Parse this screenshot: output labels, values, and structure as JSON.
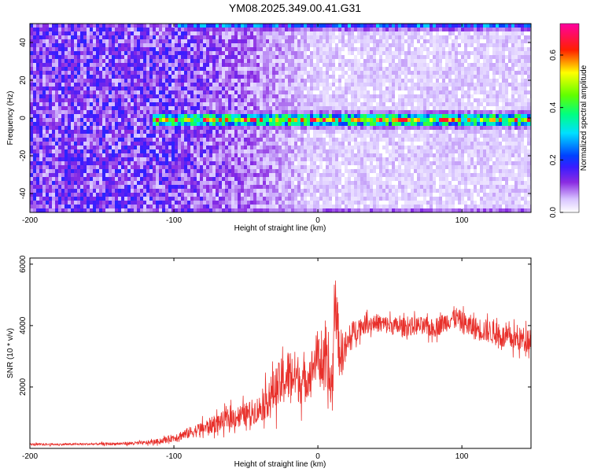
{
  "title": "YM08.2025.349.00.41.G31",
  "chart_data": [
    {
      "type": "heatmap",
      "title": "YM08.2025.349.00.41.G31",
      "xlabel": "Height of straight line (km)",
      "ylabel": "Frequency (Hz)",
      "xlim": [
        -200,
        148
      ],
      "ylim": [
        -50,
        50
      ],
      "x_ticks": [
        "-200",
        "-100",
        "0",
        "100"
      ],
      "y_ticks": [
        "40",
        "20",
        "0",
        "-20",
        "-40"
      ],
      "colorbar": {
        "label": "Normalized spectral amplitude",
        "range": [
          0,
          0.72
        ],
        "ticks": [
          "0.0",
          "0.2",
          "0.4",
          "0.6"
        ],
        "colormap": "white-violet-blue-cyan-green-yellow-red-magenta"
      },
      "features": [
        {
          "description": "signal line",
          "frequency_hz": 0,
          "x_start_km": -115,
          "x_end_km": 148,
          "peak_amplitude": 0.68
        },
        {
          "description": "band edge",
          "frequency_hz": -50,
          "x_start_km": -100,
          "x_end_km": 148,
          "peak_amplitude": 0.3
        },
        {
          "description": "band edge",
          "frequency_hz": 50,
          "x_start_km": -100,
          "x_end_km": 148,
          "peak_amplitude": 0.3
        }
      ],
      "background_level": {
        "x_below_minus100_km": 0.12,
        "x_above_0_km": 0.04
      }
    },
    {
      "type": "line",
      "xlabel": "Height of straight line (km)",
      "ylabel": "SNR (10 * v/v)",
      "xlim": [
        -200,
        148
      ],
      "ylim": [
        0,
        6200
      ],
      "x_ticks": [
        "-200",
        "-100",
        "0",
        "100"
      ],
      "y_ticks": [
        "2000",
        "4000",
        "6000"
      ],
      "color": "#e8302b",
      "series": [
        {
          "x": [
            -200,
            -180,
            -160,
            -140,
            -120,
            -110,
            -100,
            -90,
            -80,
            -70,
            -60,
            -50,
            -40,
            -35,
            -30,
            -25,
            -20,
            -15,
            -10,
            -5,
            0,
            5,
            10,
            12,
            15,
            20,
            25,
            30,
            35,
            40,
            50,
            60,
            70,
            80,
            90,
            95,
            100,
            110,
            120,
            130,
            140,
            148
          ],
          "values": [
            130,
            130,
            140,
            150,
            180,
            230,
            350,
            500,
            650,
            820,
            1000,
            1100,
            1300,
            1600,
            1900,
            2150,
            2400,
            2350,
            2100,
            2500,
            3100,
            2500,
            2000,
            5000,
            3100,
            3300,
            3800,
            4000,
            4050,
            4100,
            4000,
            3950,
            4000,
            3900,
            4150,
            4300,
            4100,
            3900,
            3800,
            3600,
            3550,
            3600
          ],
          "spread": [
            40,
            40,
            40,
            50,
            70,
            90,
            140,
            200,
            260,
            320,
            380,
            420,
            500,
            650,
            800,
            900,
            1000,
            900,
            800,
            700,
            900,
            1100,
            1200,
            1200,
            900,
            600,
            450,
            350,
            320,
            320,
            330,
            330,
            330,
            340,
            360,
            380,
            400,
            420,
            420,
            430,
            430,
            430
          ]
        }
      ]
    }
  ]
}
